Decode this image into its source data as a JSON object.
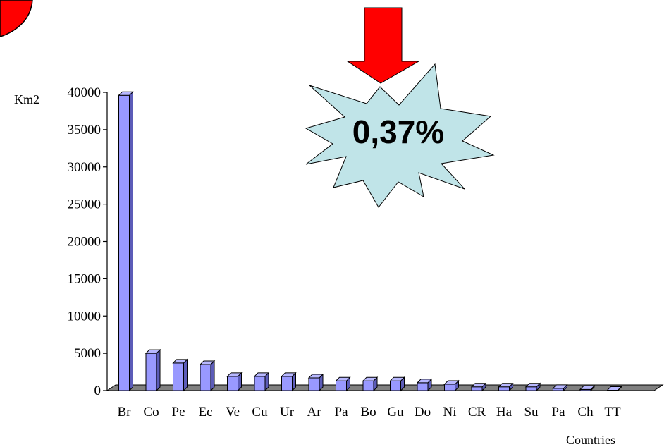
{
  "chart_data": {
    "type": "bar",
    "style": "3d",
    "categories": [
      "Br",
      "Co",
      "Pe",
      "Ec",
      "Ve",
      "Cu",
      "Ur",
      "Ar",
      "Pa",
      "Bo",
      "Gu",
      "Do",
      "Ni",
      "CR",
      "Ha",
      "Su",
      "Pa",
      "Ch",
      "TT"
    ],
    "values": [
      39600,
      5000,
      3700,
      3500,
      1900,
      1900,
      1900,
      1700,
      1300,
      1300,
      1300,
      1050,
      850,
      500,
      500,
      500,
      300,
      150,
      50
    ],
    "ylim": [
      0,
      40000
    ],
    "yticks": [
      0,
      5000,
      10000,
      15000,
      20000,
      25000,
      30000,
      35000,
      40000
    ],
    "ylabel": "Km2",
    "xlabel": "Countries",
    "grid": false,
    "legend": "none",
    "bar_color": "#9999ff",
    "floor_color": "#808080",
    "annotation": {
      "text": "0,37%",
      "shape": "starburst",
      "fill": "#c0e4e8",
      "arrow": "down-arrow",
      "arrow_color": "#ff0000"
    },
    "corner_shape": {
      "color": "#ff0000"
    }
  }
}
